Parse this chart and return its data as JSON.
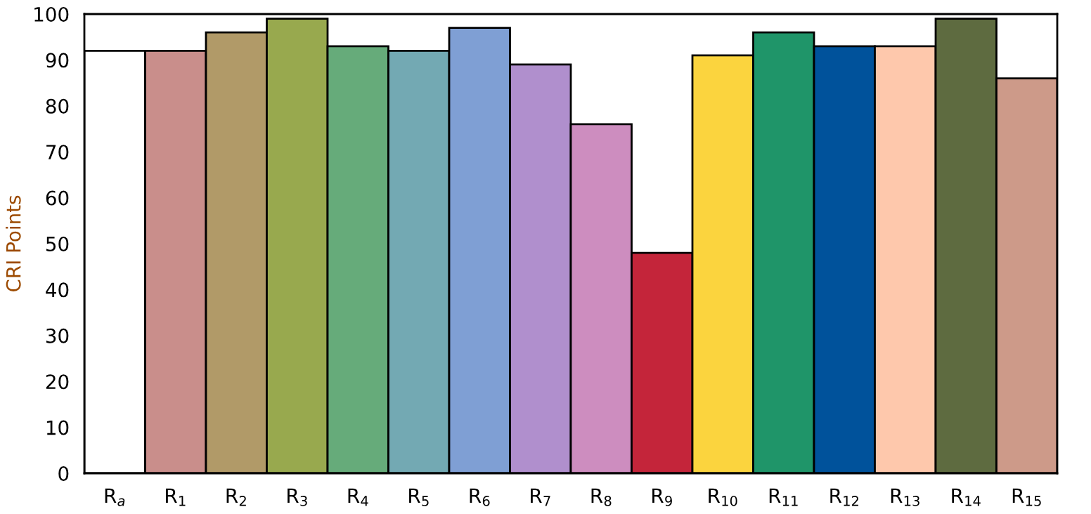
{
  "chart_data": {
    "type": "bar",
    "ylabel": "CRI Points",
    "categories": [
      "R$_{a}$",
      "R$_{1}$",
      "R$_{2}$",
      "R$_{3}$",
      "R$_{4}$",
      "R$_{5}$",
      "R$_{6}$",
      "R$_{7}$",
      "R$_{8}$",
      "R$_{9}$",
      "R$_{10}$",
      "R$_{11}$",
      "R$_{12}$",
      "R$_{13}$",
      "R$_{14}$",
      "R$_{15}$"
    ],
    "values": [
      92,
      92,
      96,
      99,
      93,
      92,
      97,
      89,
      76,
      48,
      91,
      96,
      93,
      93,
      99,
      86
    ],
    "colors": [
      "#ffffff",
      "#c98e8b",
      "#b19a68",
      "#98a94e",
      "#66ab7a",
      "#73a9b3",
      "#7f9fd4",
      "#b08fcd",
      "#cd8dbf",
      "#c4253a",
      "#fbd43e",
      "#1f9569",
      "#00529b",
      "#fec8ac",
      "#5e6b40",
      "#cd9a89"
    ],
    "ylim": [
      0,
      100
    ],
    "yticks": [
      0,
      10,
      20,
      30,
      40,
      50,
      60,
      70,
      80,
      90,
      100
    ],
    "grid": false
  }
}
